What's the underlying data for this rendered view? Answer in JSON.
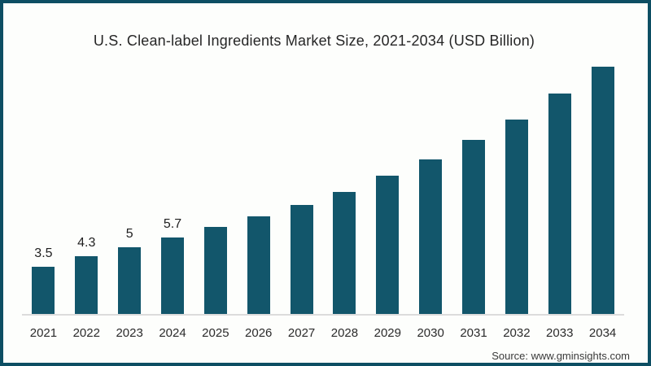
{
  "frame": {
    "border_color": "#0d4e63",
    "background_color": "#fdfefc"
  },
  "chart_data": {
    "type": "bar",
    "title": "U.S. Clean-label Ingredients Market Size, 2021-2034 (USD Billion)",
    "categories": [
      "2021",
      "2022",
      "2023",
      "2024",
      "2025",
      "2026",
      "2027",
      "2028",
      "2029",
      "2030",
      "2031",
      "2032",
      "2033",
      "2034"
    ],
    "values": [
      3.5,
      4.3,
      5,
      5.7,
      6.5,
      7.3,
      8.1,
      9.1,
      10.3,
      11.5,
      13,
      14.5,
      16.4,
      18.4
    ],
    "data_labels": [
      "3.5",
      "4.3",
      "5",
      "5.7",
      "",
      "",
      "",
      "",
      "",
      "",
      "",
      "",
      "",
      ""
    ],
    "xlabel": "",
    "ylabel": "",
    "ylim": [
      0,
      20
    ],
    "gridlines": false,
    "legend": "none",
    "bar_color": "#12566b",
    "axis_line_color": "#dcdcdc",
    "title_color": "#262626",
    "label_color": "#1f1f1f"
  },
  "footer": {
    "source": "Source: www.gminsights.com"
  }
}
